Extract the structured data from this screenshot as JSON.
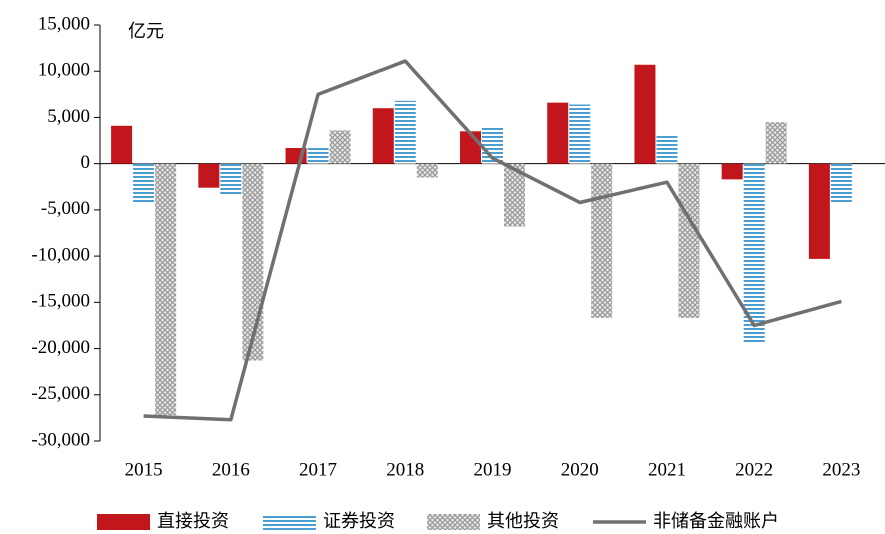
{
  "chart_data": {
    "type": "bar_line",
    "unit_label": "亿元",
    "categories": [
      "2015",
      "2016",
      "2017",
      "2018",
      "2019",
      "2020",
      "2021",
      "2022",
      "2023"
    ],
    "series": [
      {
        "name": "直接投资",
        "type": "bar",
        "color": "#c0161c",
        "pattern": "solid",
        "values": [
          4100,
          -2600,
          1700,
          6000,
          3500,
          6600,
          10700,
          -1700,
          -10300
        ]
      },
      {
        "name": "证券投资",
        "type": "bar",
        "color": "#4a9fd0",
        "pattern": "stripes",
        "values": [
          -4300,
          -3400,
          1800,
          6800,
          3900,
          6400,
          3000,
          -19300,
          -4300
        ]
      },
      {
        "name": "其他投资",
        "type": "bar",
        "color": "#a8a8a8",
        "pattern": "crosshatch",
        "values": [
          -27200,
          -21300,
          3600,
          -1500,
          -6800,
          -16700,
          -16700,
          4500,
          null
        ]
      },
      {
        "name": "非储备金融账户",
        "type": "line",
        "color": "#707070",
        "values": [
          -27300,
          -27700,
          7500,
          11100,
          600,
          -4200,
          -2000,
          -17500,
          -14900
        ]
      }
    ],
    "ylim": [
      -30000,
      15000
    ],
    "yticks": [
      {
        "value": -30000,
        "label": "-30,000"
      },
      {
        "value": -25000,
        "label": "-25,000"
      },
      {
        "value": -20000,
        "label": "-20,000"
      },
      {
        "value": -15000,
        "label": "-15,000"
      },
      {
        "value": -10000,
        "label": "-10,000"
      },
      {
        "value": -5000,
        "label": "-5,000"
      },
      0,
      {
        "value": 5000,
        "label": "5,000"
      },
      {
        "value": 10000,
        "label": "10,000"
      },
      {
        "value": 15000,
        "label": "15,000"
      }
    ],
    "grid": false
  }
}
